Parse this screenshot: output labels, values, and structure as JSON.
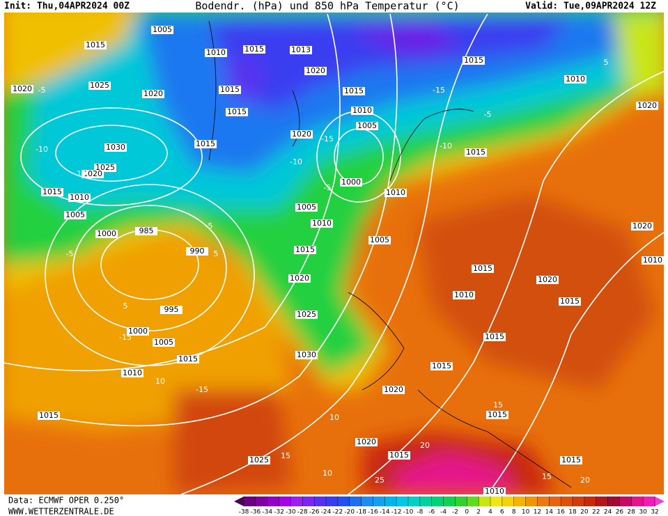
{
  "header": {
    "init": "Init: Thu,04APR2024 00Z",
    "title": "Bodendr. (hPa) und 850 hPa Temperatur (°C)",
    "valid": "Valid: Tue,09APR2024 12Z"
  },
  "footer": {
    "data": "Data: ECMWF OPER 0.250°",
    "site": "WWW.WETTERZENTRALE.DE"
  },
  "colorbar": {
    "ticks": [
      -38,
      -36,
      -34,
      -32,
      -30,
      -28,
      -26,
      -24,
      -22,
      -20,
      -18,
      -16,
      -14,
      -12,
      -10,
      -8,
      -6,
      -4,
      -2,
      0,
      2,
      4,
      6,
      8,
      10,
      12,
      14,
      16,
      18,
      20,
      22,
      24,
      26,
      28,
      30,
      32
    ],
    "colors": [
      "#4b0050",
      "#6a0080",
      "#8000a0",
      "#9400c8",
      "#a800e6",
      "#9a20f0",
      "#7a28f0",
      "#5a30f0",
      "#3a3cf0",
      "#2050f0",
      "#1e6ef0",
      "#1e8cf0",
      "#14a0f0",
      "#00b4f0",
      "#00c8e6",
      "#00d2c8",
      "#00d2a0",
      "#00d278",
      "#10d250",
      "#30d230",
      "#60dc1e",
      "#c8e614",
      "#f0e614",
      "#f5d20a",
      "#f5b400",
      "#f09600",
      "#ec7a12",
      "#e6640f",
      "#dc500a",
      "#d23c0a",
      "#c8280a",
      "#b4141e",
      "#a00a32",
      "#c80a64",
      "#e6148c",
      "#f01eb4",
      "#f03cdc"
    ]
  },
  "isobar_labels": [
    "1005",
    "1015",
    "1010",
    "1015",
    "1013",
    "1020",
    "1020",
    "1025",
    "1020",
    "1015",
    "1015",
    "1015",
    "1010",
    "1005",
    "1020",
    "1015",
    "1030",
    "1025",
    "1020",
    "1015",
    "1010",
    "1005",
    "1000",
    "985",
    "990",
    "1000",
    "1005",
    "1010",
    "1015",
    "1020",
    "1025",
    "1030",
    "995",
    "1000",
    "1005",
    "1015",
    "1010",
    "1015",
    "1025",
    "1020",
    "1015",
    "1015",
    "1015",
    "1015",
    "1020",
    "1015",
    "1015",
    "1010",
    "1020",
    "1015",
    "1005",
    "1010",
    "1015",
    "1015",
    "1010",
    "1020",
    "1020",
    "1010",
    "1010"
  ],
  "isotherm_labels": [
    "-5",
    "-10",
    "-15",
    "-5",
    "-10",
    "-5",
    "-15",
    "-10",
    "-5",
    "5",
    "10",
    "-5",
    "5",
    "10",
    "-15",
    "15",
    "10",
    "15",
    "20",
    "25",
    "15",
    "20",
    "-15",
    "-10",
    "5"
  ]
}
